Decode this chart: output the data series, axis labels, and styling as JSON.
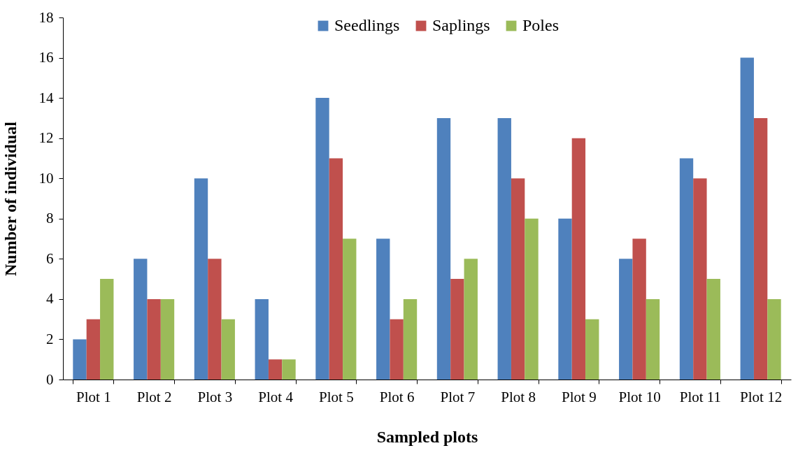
{
  "chart_data": {
    "type": "bar",
    "xlabel": "Sampled plots",
    "ylabel": "Number of individual",
    "categories": [
      "Plot 1",
      "Plot 2",
      "Plot 3",
      "Plot 4",
      "Plot 5",
      "Plot 6",
      "Plot 7",
      "Plot 8",
      "Plot 9",
      "Plot 10",
      "Plot 11",
      "Plot 12"
    ],
    "series": [
      {
        "name": "Seedlings",
        "color": "#4f81bd",
        "values": [
          2,
          6,
          10,
          4,
          14,
          7,
          13,
          13,
          8,
          6,
          11,
          16
        ]
      },
      {
        "name": "Saplings",
        "color": "#c0504d",
        "values": [
          3,
          4,
          6,
          1,
          11,
          3,
          5,
          10,
          12,
          7,
          10,
          13
        ]
      },
      {
        "name": "Poles",
        "color": "#9bbb59",
        "values": [
          5,
          4,
          3,
          1,
          7,
          4,
          6,
          8,
          3,
          4,
          5,
          4
        ]
      }
    ],
    "ylim": [
      0,
      18
    ],
    "yticks": [
      0,
      2,
      4,
      6,
      8,
      10,
      12,
      14,
      16,
      18
    ],
    "grid": false,
    "legend": "top"
  }
}
